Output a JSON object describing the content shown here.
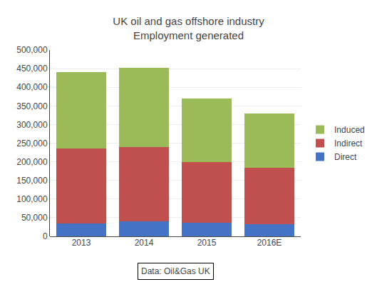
{
  "chart_data": {
    "type": "bar",
    "stacked": true,
    "title": "UK oil and gas offshore industry",
    "subtitle": "Employment generated",
    "categories": [
      "2013",
      "2014",
      "2015",
      "2016E"
    ],
    "series": [
      {
        "name": "Direct",
        "color": "#4472C4",
        "values": [
          35000,
          40000,
          37000,
          33000
        ]
      },
      {
        "name": "Indirect",
        "color": "#C0504D",
        "values": [
          200000,
          200000,
          163000,
          150000
        ]
      },
      {
        "name": "Induced",
        "color": "#9BBB59",
        "values": [
          205000,
          213000,
          170000,
          147000
        ]
      }
    ],
    "ylim": [
      0,
      500000
    ],
    "yticks": [
      0,
      {
        "value": 50000,
        "label": "50,000"
      },
      {
        "value": 100000,
        "label": "100,000"
      },
      {
        "value": 150000,
        "label": "150,000"
      },
      {
        "value": 200000,
        "label": "200,000"
      },
      {
        "value": 250000,
        "label": "250,000"
      },
      {
        "value": 300000,
        "label": "300,000"
      },
      {
        "value": 350000,
        "label": "350,000"
      },
      {
        "value": 400000,
        "label": "400,000"
      },
      {
        "value": 450000,
        "label": "450,000"
      },
      {
        "value": 500000,
        "label": "500,000"
      }
    ],
    "grid": true,
    "legend": "right",
    "annotations": [
      "Data: Oil&Gas UK"
    ]
  }
}
